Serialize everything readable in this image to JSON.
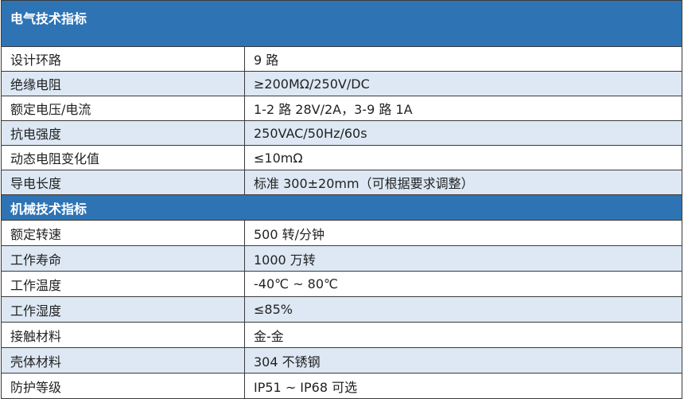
{
  "sections": [
    {
      "title": "电气技术指标",
      "rows": [
        {
          "label": "设计环路",
          "value": "9 路"
        },
        {
          "label": "绝缘电阻",
          "value": "≥200MΩ/250V/DC"
        },
        {
          "label": "额定电压/电流",
          "value": "1-2 路 28V/2A，3-9 路 1A"
        },
        {
          "label": "抗电强度",
          "value": "250VAC/50Hz/60s"
        },
        {
          "label": "动态电阻变化值",
          "value": "≤10mΩ"
        },
        {
          "label": "导电长度",
          "value": "标准 300±20mm（可根据要求调整）"
        }
      ]
    },
    {
      "title": "机械技术指标",
      "rows": [
        {
          "label": "额定转速",
          "value": "500 转/分钟"
        },
        {
          "label": "工作寿命",
          "value": "1000 万转"
        },
        {
          "label": "工作温度",
          "value": "-40℃ ~ 80℃"
        },
        {
          "label": "工作湿度",
          "value": "≤85%"
        },
        {
          "label": "接触材料",
          "value": "金-金"
        },
        {
          "label": "壳体材料",
          "value": "304 不锈钢"
        },
        {
          "label": "防护等级",
          "value": "IP51 ~ IP68 可选"
        }
      ]
    }
  ],
  "colors": {
    "header": "#2e74b5",
    "alt_row": "#dde8f4"
  }
}
